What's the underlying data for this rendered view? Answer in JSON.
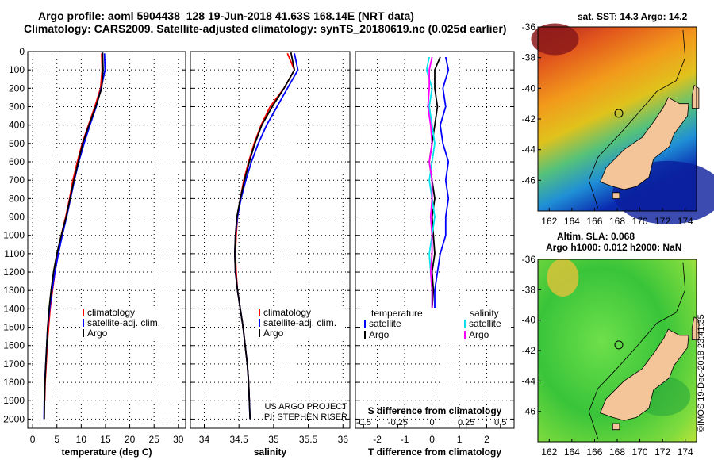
{
  "header": {
    "line1": "Argo profile: aoml 5904438_128 19-Jun-2018 41.63S 168.14E (NRT data)",
    "line2": "Climatology: CARS2009. Satellite-adjusted climatology: synTS_20180619.nc (0.025d earlier)"
  },
  "colors": {
    "climatology": "#ff0000",
    "satellite": "#0000ff",
    "argo": "#000000",
    "sal_satellite": "#00e5ee",
    "sal_argo": "#ff00ff"
  },
  "chart_data": [
    {
      "id": "temperature",
      "type": "line",
      "xlabel": "temperature (deg C)",
      "ylabel": "",
      "xlim": [
        -1,
        31.5
      ],
      "ylim": [
        2050,
        0
      ],
      "xticks": [
        0,
        5,
        10,
        15,
        20,
        25,
        30
      ],
      "yticks": [
        0,
        100,
        200,
        300,
        400,
        500,
        600,
        700,
        800,
        900,
        1000,
        1100,
        1200,
        1300,
        1400,
        1500,
        1600,
        1700,
        1800,
        1900,
        2000
      ],
      "grid": true,
      "legend": {
        "position": "lower-right",
        "entries": [
          "climatology",
          "satellite-adj. clim.",
          "Argo"
        ]
      },
      "series": [
        {
          "name": "climatology",
          "color": "#ff0000",
          "x": [
            14.2,
            14.3,
            14.0,
            12.8,
            11.5,
            10.2,
            9.2,
            8.3,
            7.6,
            6.8,
            5.9,
            5.2,
            4.6,
            4.1,
            3.6,
            3.3,
            3.0,
            2.8,
            2.6,
            2.5
          ],
          "y": [
            10,
            100,
            200,
            300,
            400,
            500,
            600,
            700,
            800,
            900,
            1000,
            1100,
            1200,
            1300,
            1400,
            1500,
            1600,
            1700,
            1800,
            1900
          ]
        },
        {
          "name": "satellite",
          "color": "#0000ff",
          "x": [
            14.8,
            14.9,
            14.1,
            13.1,
            11.8,
            10.6,
            9.5,
            8.6,
            7.8,
            7.0,
            6.1,
            5.3,
            4.6,
            4.0,
            3.5,
            3.1,
            2.9,
            2.7,
            2.5,
            2.4,
            2.35
          ],
          "y": [
            10,
            100,
            200,
            300,
            400,
            500,
            600,
            700,
            800,
            900,
            1000,
            1100,
            1200,
            1300,
            1400,
            1500,
            1600,
            1700,
            1800,
            1900,
            2000
          ]
        },
        {
          "name": "Argo",
          "color": "#000000",
          "x": [
            14.4,
            14.5,
            14.2,
            13.0,
            11.6,
            10.3,
            9.4,
            8.5,
            7.7,
            6.9,
            5.9,
            5.0,
            4.3,
            3.8,
            3.4,
            3.1,
            2.9,
            2.7,
            2.55,
            2.45,
            2.4
          ],
          "y": [
            5,
            100,
            200,
            300,
            400,
            500,
            600,
            700,
            800,
            900,
            1000,
            1100,
            1200,
            1300,
            1400,
            1500,
            1600,
            1700,
            1800,
            1900,
            2000
          ]
        }
      ]
    },
    {
      "id": "salinity",
      "type": "line",
      "xlabel": "salinity",
      "xlim": [
        33.8,
        36.1
      ],
      "ylim": [
        2050,
        0
      ],
      "xticks": [
        34,
        34.5,
        35,
        35.5,
        36
      ],
      "grid": true,
      "legend": {
        "position": "lower-right",
        "entries": [
          "climatology",
          "satellite-adj. clim.",
          "Argo"
        ]
      },
      "annotations": [
        "US ARGO PROJECT",
        "PI: STEPHEN RISER"
      ],
      "series": [
        {
          "name": "climatology",
          "color": "#ff0000",
          "x": [
            35.2,
            35.3,
            35.15,
            34.95,
            34.82,
            34.72,
            34.64,
            34.57,
            34.52,
            34.48,
            34.46,
            34.45,
            34.46,
            34.48,
            34.52,
            34.56,
            34.59,
            34.62,
            34.64,
            34.65
          ],
          "y": [
            10,
            100,
            200,
            300,
            400,
            500,
            600,
            700,
            800,
            900,
            1000,
            1100,
            1200,
            1300,
            1400,
            1500,
            1600,
            1700,
            1800,
            1900
          ]
        },
        {
          "name": "satellite",
          "color": "#0000ff",
          "x": [
            35.3,
            35.35,
            35.2,
            35.05,
            34.9,
            34.78,
            34.68,
            34.6,
            34.53,
            34.48,
            34.45,
            34.44,
            34.45,
            34.48,
            34.52,
            34.56,
            34.59,
            34.62,
            34.64,
            34.65,
            34.66
          ],
          "y": [
            10,
            100,
            200,
            300,
            400,
            500,
            600,
            700,
            800,
            900,
            1000,
            1100,
            1200,
            1300,
            1400,
            1500,
            1600,
            1700,
            1800,
            1900,
            2000
          ]
        },
        {
          "name": "Argo",
          "color": "#000000",
          "x": [
            35.25,
            35.3,
            35.15,
            34.98,
            34.83,
            34.73,
            34.65,
            34.58,
            34.52,
            34.47,
            34.45,
            34.44,
            34.45,
            34.48,
            34.52,
            34.56,
            34.59,
            34.62,
            34.64,
            34.65,
            34.66
          ],
          "y": [
            5,
            100,
            200,
            300,
            400,
            500,
            600,
            700,
            800,
            900,
            1000,
            1100,
            1200,
            1300,
            1400,
            1500,
            1600,
            1700,
            1800,
            1900,
            2000
          ]
        }
      ]
    },
    {
      "id": "difference",
      "type": "line",
      "xlabel": "T difference from climatology",
      "xlabel2": "S difference from climatology",
      "xlim": [
        -2.8,
        3.0
      ],
      "ylim": [
        2050,
        0
      ],
      "xticks": [
        -2,
        -1,
        0,
        1,
        2
      ],
      "xtick_labels": [
        "-2",
        "-1",
        "0",
        "1",
        "2"
      ],
      "xticks2": [
        -2.5,
        -1.25,
        0,
        1.25,
        2.5
      ],
      "xtick2_labels": [
        "-0.5",
        "-0.25",
        "0",
        "0.25",
        "0.5"
      ],
      "grid": true,
      "legend": {
        "position": "lower-center",
        "headers": [
          "temperature",
          "salinity"
        ],
        "entries": [
          "satellite",
          "Argo",
          "satellite",
          "Argo"
        ]
      },
      "series": [
        {
          "name": "T satellite",
          "color": "#0000ff",
          "x": [
            0.5,
            0.6,
            0.4,
            0.5,
            0.3,
            0.4,
            0.6,
            0.5,
            0.6,
            0.5,
            0.5,
            0.3,
            0.2,
            0.1,
            0.1
          ],
          "y": [
            30,
            100,
            200,
            300,
            400,
            500,
            600,
            700,
            800,
            900,
            1000,
            1100,
            1200,
            1300,
            1400
          ]
        },
        {
          "name": "T Argo",
          "color": "#000000",
          "x": [
            0.3,
            0.1,
            0.1,
            0.2,
            0.1,
            0.0,
            -0.1,
            0.0,
            0.1,
            0.0,
            0.05,
            0.1,
            0.0,
            0.05,
            0.0
          ],
          "y": [
            30,
            100,
            200,
            300,
            400,
            500,
            600,
            700,
            800,
            900,
            1000,
            1100,
            1200,
            1300,
            1400
          ]
        },
        {
          "name": "S satellite",
          "color": "#00e5ee",
          "x": [
            -0.1,
            -0.2,
            0.0,
            -0.1,
            0.0,
            0.1,
            0.0,
            -0.1,
            0.0,
            0.1,
            0.0,
            -0.1,
            -0.05,
            0.0,
            0.0
          ],
          "y": [
            30,
            100,
            200,
            300,
            400,
            500,
            600,
            700,
            800,
            900,
            1000,
            1100,
            1200,
            1300,
            1400
          ]
        },
        {
          "name": "S Argo",
          "color": "#ff00ff",
          "x": [
            0.0,
            -0.1,
            -0.1,
            -0.15,
            -0.05,
            0.0,
            -0.1,
            0.0,
            0.0,
            -0.05,
            0.0,
            0.0,
            -0.05,
            0.0,
            0.0
          ],
          "y": [
            30,
            100,
            200,
            300,
            400,
            500,
            600,
            700,
            800,
            900,
            1000,
            1100,
            1200,
            1300,
            1400
          ]
        }
      ]
    }
  ],
  "maps": {
    "sst": {
      "title": "sat. SST: 14.3 Argo: 14.2",
      "xticks": [
        162,
        164,
        166,
        168,
        170,
        172,
        174
      ],
      "yticks": [
        -36,
        -38,
        -40,
        -42,
        -44,
        -46
      ],
      "marker_lon": 168.14,
      "marker_lat": -41.63,
      "lon_range": [
        161,
        175
      ],
      "lat_range": [
        -36,
        -48
      ]
    },
    "sla": {
      "title_line1": "Altim. SLA: 0.068",
      "title_line2": "Argo h1000: 0.012 h2000: NaN",
      "xticks": [
        162,
        164,
        166,
        168,
        170,
        172,
        174
      ],
      "yticks": [
        -36,
        -38,
        -40,
        -42,
        -44,
        -46
      ],
      "marker_lon": 168.14,
      "marker_lat": -41.63,
      "lon_range": [
        161,
        175
      ],
      "lat_range": [
        -36,
        -48
      ]
    }
  },
  "stamp": "©IMOS 19-Dec-2018 23:41:35"
}
